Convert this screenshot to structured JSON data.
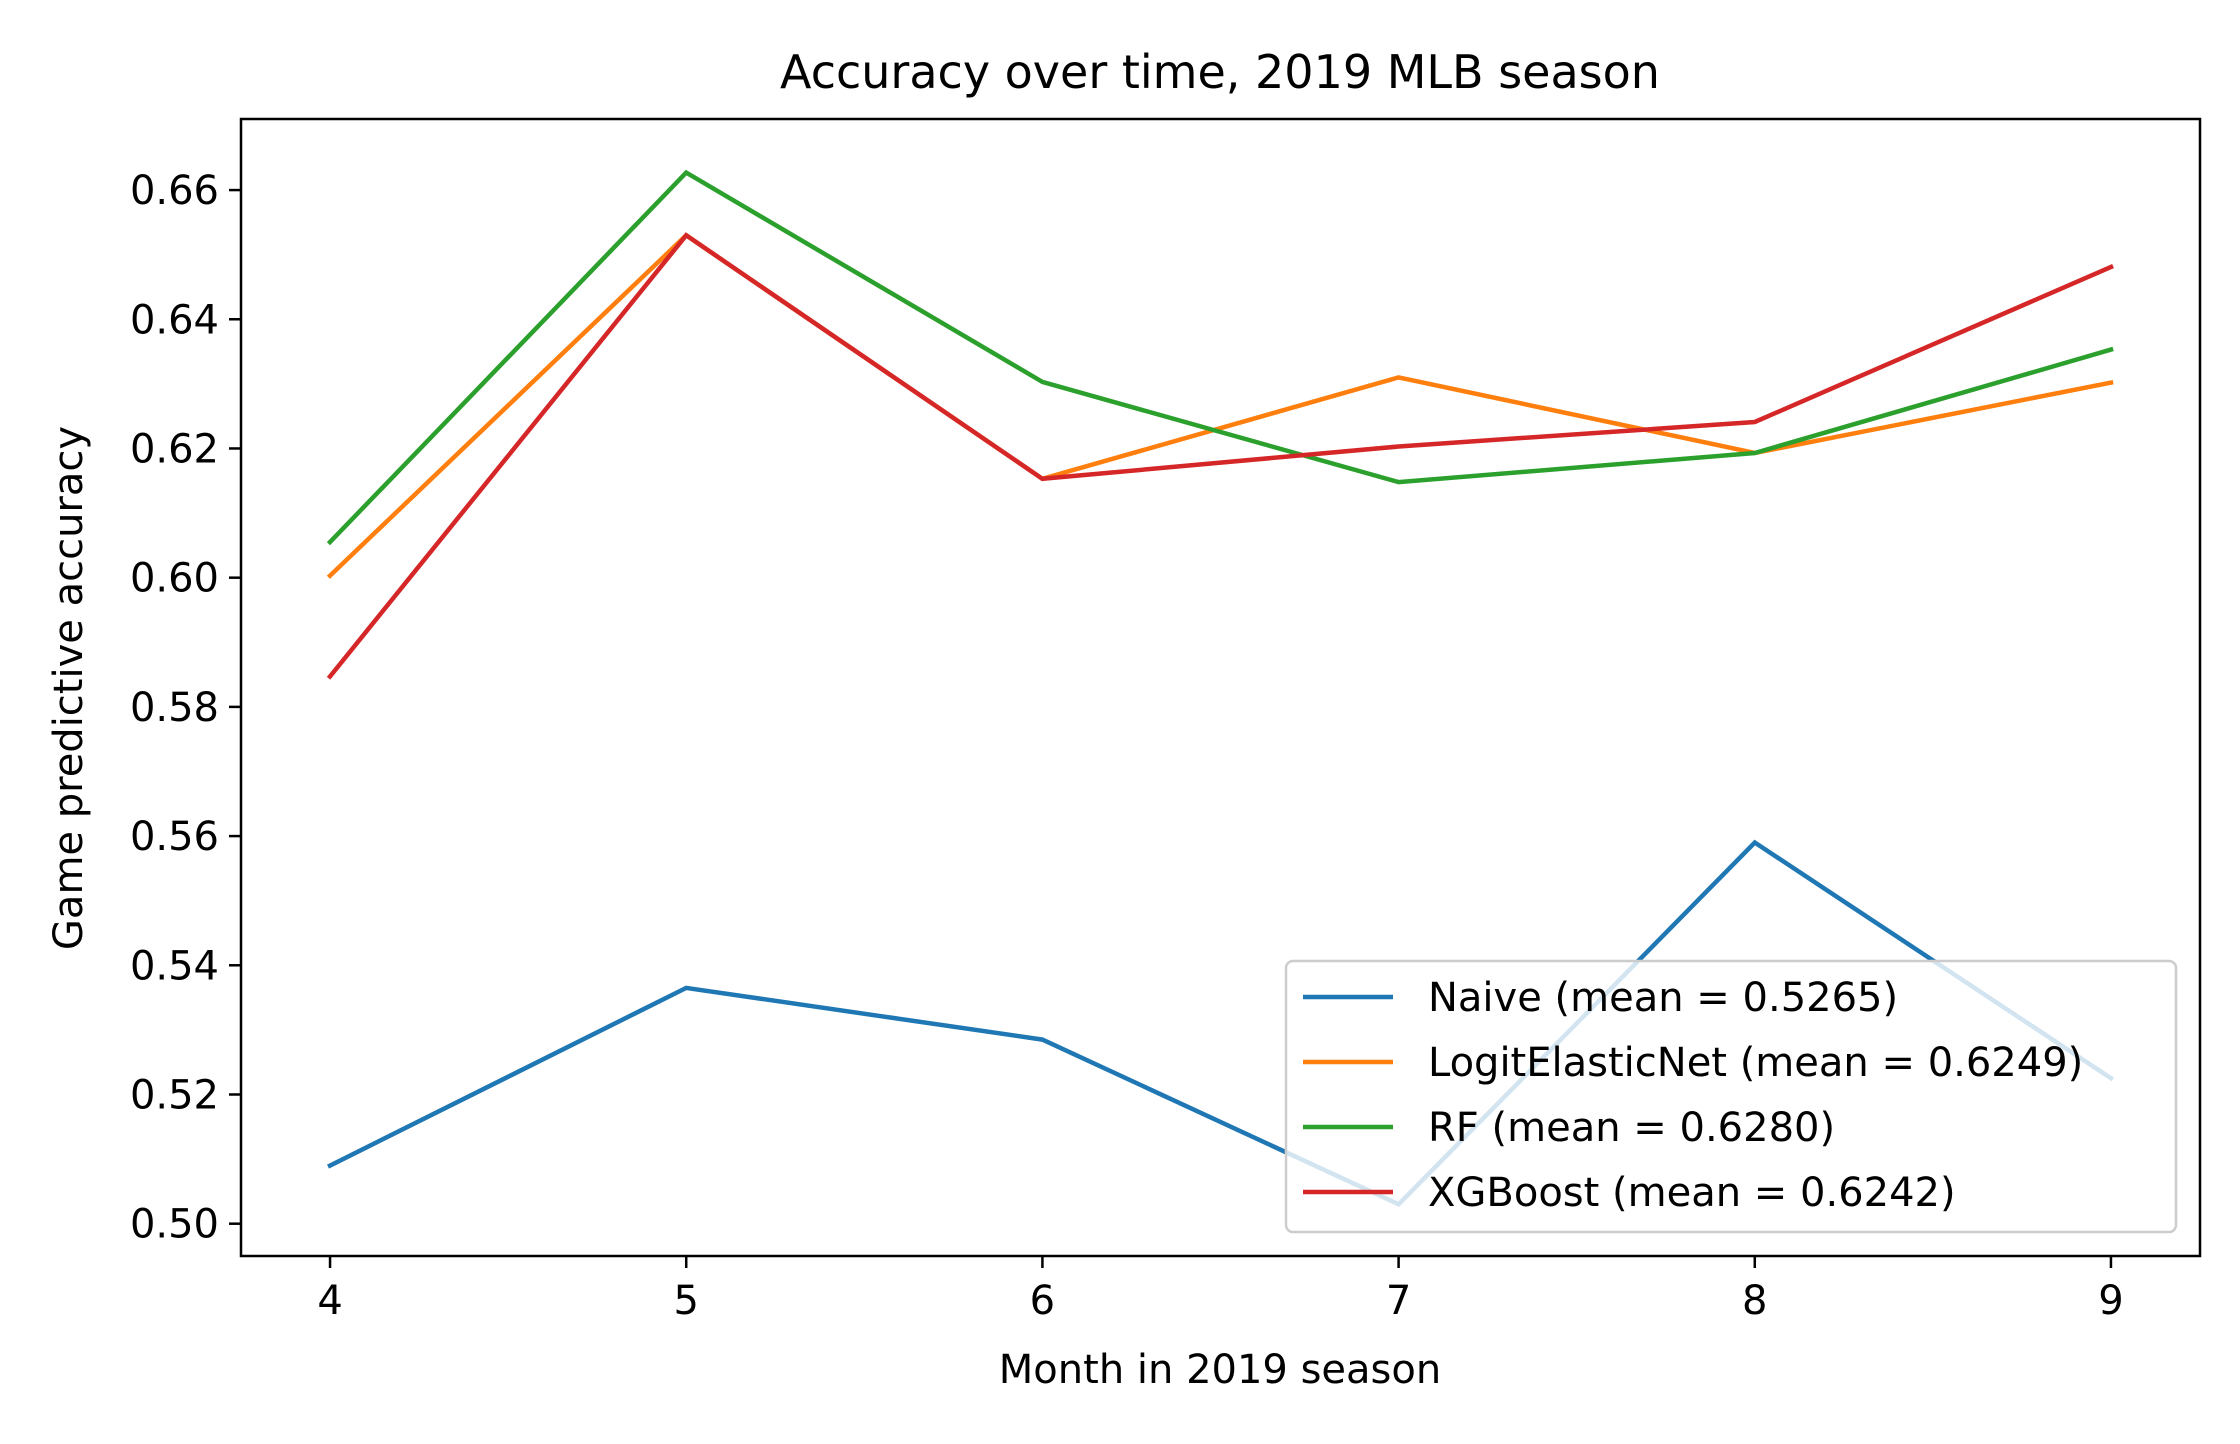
{
  "chart_data": {
    "type": "line",
    "title": "Accuracy over time, 2019 MLB season",
    "xlabel": "Month in 2019 season",
    "ylabel": "Game predictive accuracy",
    "x": [
      4,
      5,
      6,
      7,
      8,
      9
    ],
    "xlim": [
      3.75,
      9.25
    ],
    "ylim": [
      0.495,
      0.671
    ],
    "xticks": [
      4,
      5,
      6,
      7,
      8,
      9
    ],
    "xtick_labels": [
      "4",
      "5",
      "6",
      "7",
      "8",
      "9"
    ],
    "yticks": [
      0.5,
      0.52,
      0.54,
      0.56,
      0.58,
      0.6,
      0.62,
      0.64,
      0.66
    ],
    "ytick_labels": [
      "0.50",
      "0.52",
      "0.54",
      "0.56",
      "0.58",
      "0.60",
      "0.62",
      "0.64",
      "0.66"
    ],
    "grid": false,
    "legend_position": "lower-right",
    "series": [
      {
        "name": "Naive (mean = 0.5265)",
        "color": "#1f77b4",
        "values": [
          0.509,
          0.5365,
          0.5285,
          0.503,
          0.559,
          0.5225
        ]
      },
      {
        "name": "LogitElasticNet (mean = 0.6249)",
        "color": "#ff7f0e",
        "values": [
          0.6003,
          0.653,
          0.6153,
          0.631,
          0.6193,
          0.6302
        ]
      },
      {
        "name": "RF (mean = 0.6280)",
        "color": "#2ca02c",
        "values": [
          0.6055,
          0.6627,
          0.6303,
          0.6148,
          0.6193,
          0.6353
        ]
      },
      {
        "name": "XGBoost (mean = 0.6242)",
        "color": "#d62728",
        "values": [
          0.5847,
          0.653,
          0.6153,
          0.6203,
          0.6241,
          0.6481
        ]
      }
    ]
  }
}
